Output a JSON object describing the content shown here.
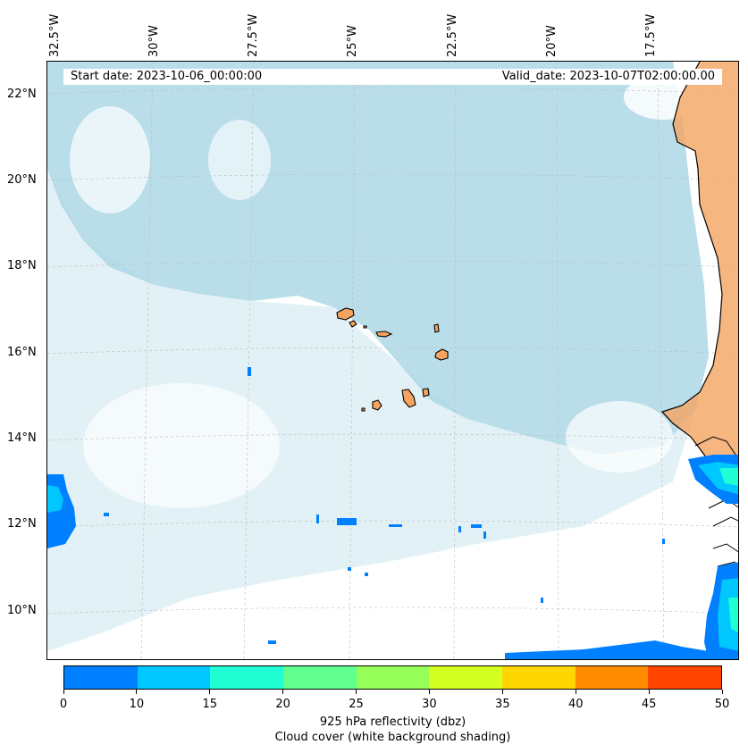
{
  "map": {
    "longitude_labels": [
      "32.5°W",
      "30°W",
      "27.5°W",
      "25°W",
      "22.5°W",
      "20°W",
      "17.5°W"
    ],
    "latitude_labels": [
      "22°N",
      "20°N",
      "18°N",
      "16°N",
      "14°N",
      "12°N",
      "10°N"
    ],
    "start_date": "Start date: 2023-10-06_00:00:00",
    "valid_date": "Valid_date: 2023-10-07T02:00:00.00",
    "colors": {
      "land": "#f4a460",
      "cloud": "#add8e6",
      "coastline": "#000000"
    }
  },
  "colorbar": {
    "tick_labels": [
      "0",
      "10",
      "15",
      "20",
      "25",
      "30",
      "35",
      "40",
      "45",
      "50"
    ],
    "colors": [
      "#0080ff",
      "#00c8ff",
      "#20ffd4",
      "#60ff90",
      "#96ff5a",
      "#d4ff20",
      "#ffd700",
      "#ff8c00",
      "#ff4500"
    ],
    "title_line1": "925 hPa reflectivity (dbz)",
    "title_line2": "Cloud cover (white background shading)"
  }
}
